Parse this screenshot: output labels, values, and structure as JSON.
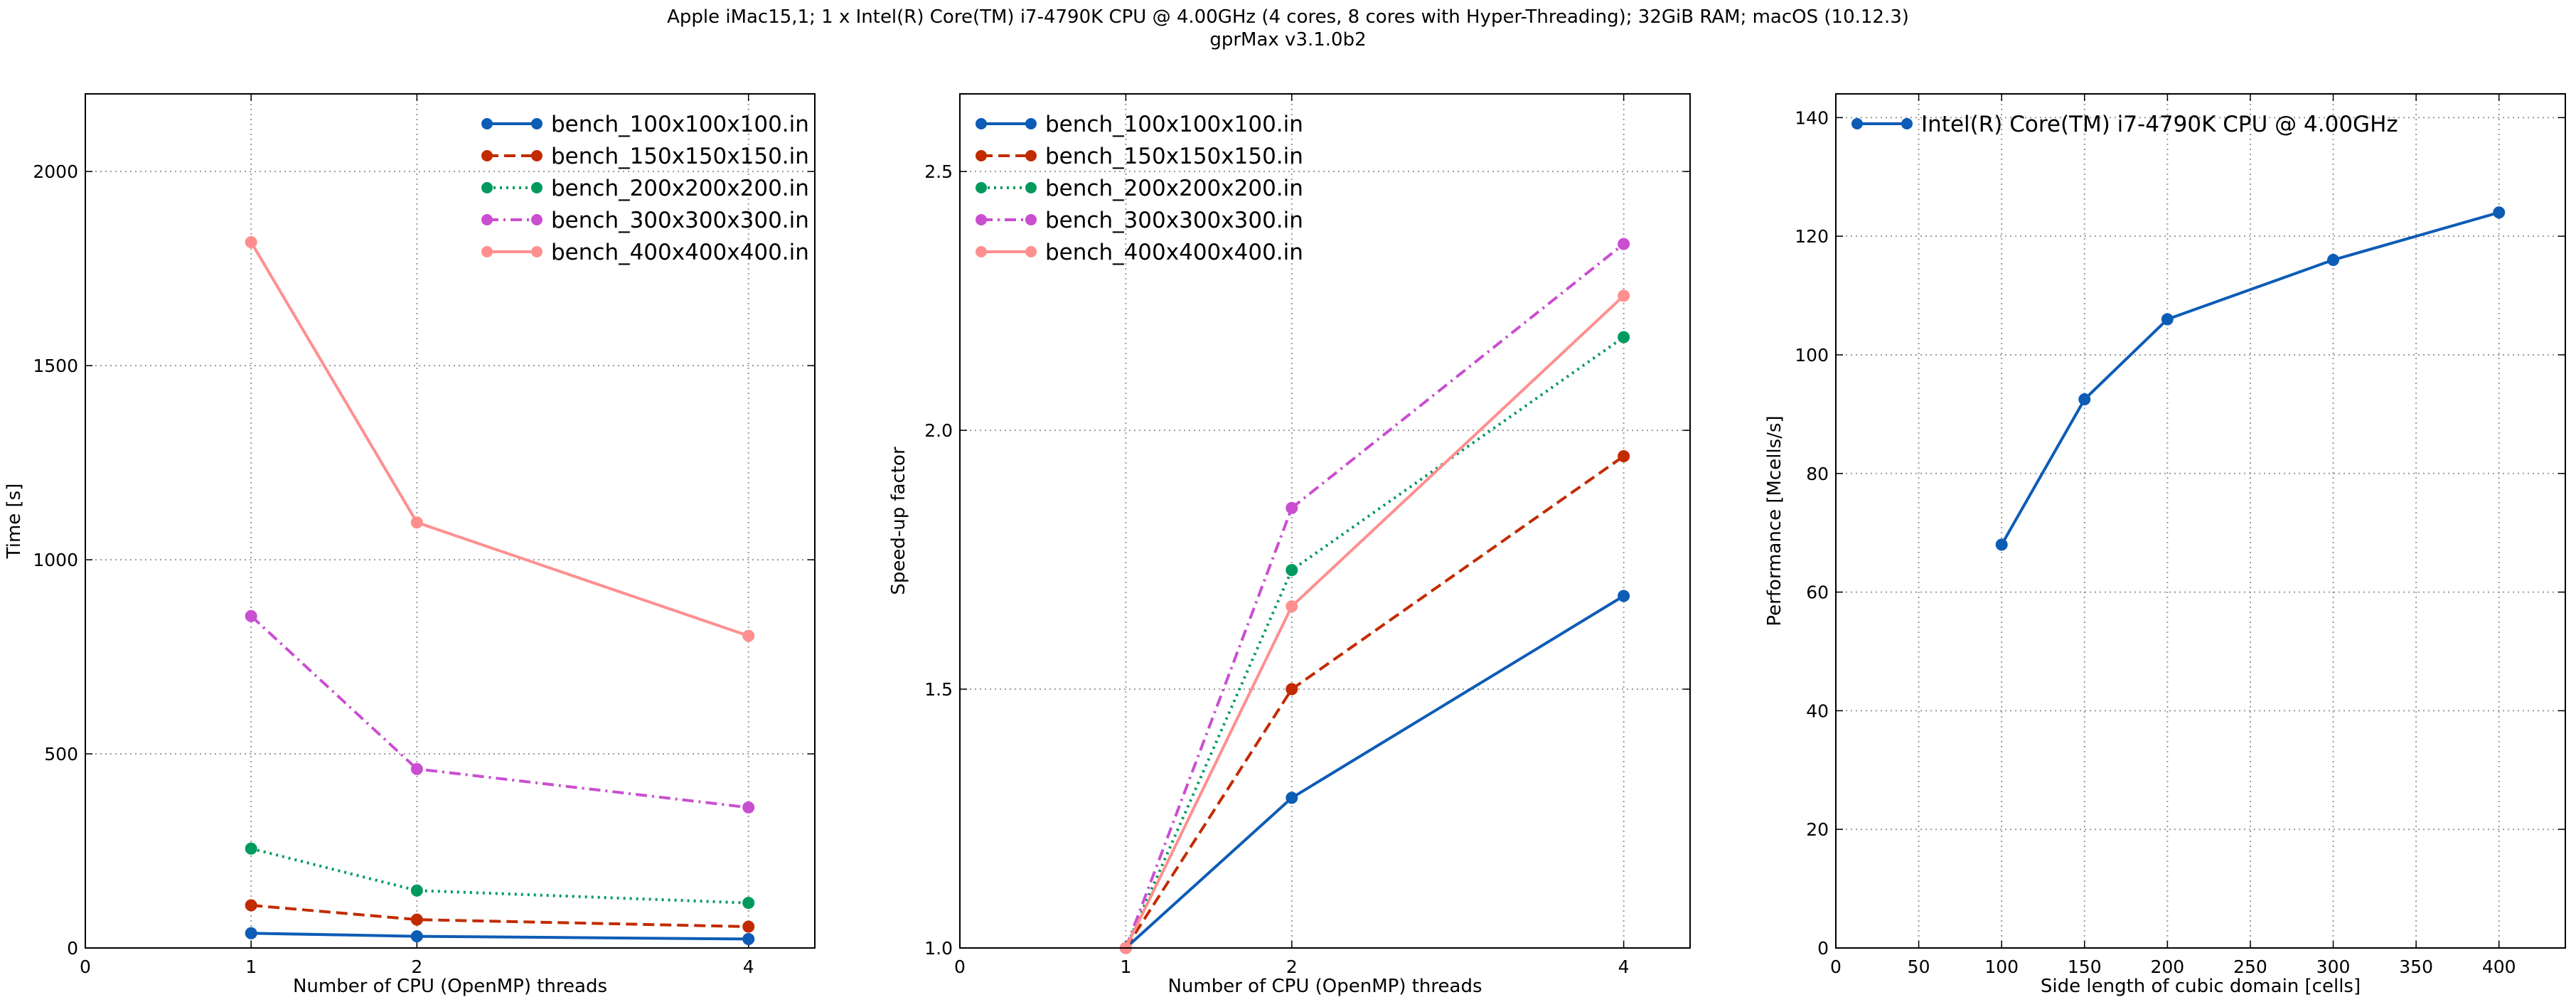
{
  "figure": {
    "title_line1": "Apple iMac15,1; 1 x Intel(R) Core(TM) i7-4790K CPU @ 4.00GHz (4 cores, 8 cores with Hyper-Threading); 32GiB RAM; macOS (10.12.3)",
    "title_line2": "gprMax v3.1.0b2"
  },
  "chart_data": [
    {
      "type": "line",
      "xlabel": "Number of CPU (OpenMP) threads",
      "ylabel": "Time [s]",
      "xlim": [
        0,
        4.4
      ],
      "ylim": [
        0,
        2200
      ],
      "xticks": [
        0,
        1,
        2,
        4
      ],
      "yticks": [
        0,
        500,
        1000,
        1500,
        2000
      ],
      "x_gridlines": [
        1,
        2,
        4
      ],
      "grid": true,
      "legend_position": "top-right",
      "x": [
        1,
        2,
        4
      ],
      "series": [
        {
          "name": "bench_100x100x100.in",
          "values": [
            38,
            30,
            23
          ],
          "color": "#0d5cb6",
          "dash": "solid"
        },
        {
          "name": "bench_150x150x150.in",
          "values": [
            110,
            73,
            55
          ],
          "color": "#c22b00",
          "dash": "dashed"
        },
        {
          "name": "bench_200x200x200.in",
          "values": [
            256,
            148,
            116
          ],
          "color": "#009a5e",
          "dash": "dotted"
        },
        {
          "name": "bench_300x300x300.in",
          "values": [
            855,
            461,
            362
          ],
          "color": "#c94fd0",
          "dash": "dashdot"
        },
        {
          "name": "bench_400x400x400.in",
          "values": [
            1818,
            1096,
            804
          ],
          "color": "#ff8f8f",
          "dash": "solid"
        }
      ]
    },
    {
      "type": "line",
      "xlabel": "Number of CPU (OpenMP) threads",
      "ylabel": "Speed-up factor",
      "xlim": [
        0,
        4.4
      ],
      "ylim": [
        1.0,
        2.65
      ],
      "xticks": [
        0,
        1,
        2,
        4
      ],
      "yticks": [
        1.0,
        1.5,
        2.0,
        2.5
      ],
      "x_gridlines": [
        1,
        2,
        4
      ],
      "grid": true,
      "legend_position": "top-left",
      "x": [
        1,
        2,
        4
      ],
      "series": [
        {
          "name": "bench_100x100x100.in",
          "values": [
            1.0,
            1.29,
            1.68
          ],
          "color": "#0d5cb6",
          "dash": "solid"
        },
        {
          "name": "bench_150x150x150.in",
          "values": [
            1.0,
            1.5,
            1.95
          ],
          "color": "#c22b00",
          "dash": "dashed"
        },
        {
          "name": "bench_200x200x200.in",
          "values": [
            1.0,
            1.73,
            2.18
          ],
          "color": "#009a5e",
          "dash": "dotted"
        },
        {
          "name": "bench_300x300x300.in",
          "values": [
            1.0,
            1.85,
            2.36
          ],
          "color": "#c94fd0",
          "dash": "dashdot"
        },
        {
          "name": "bench_400x400x400.in",
          "values": [
            1.0,
            1.66,
            2.26
          ],
          "color": "#ff8f8f",
          "dash": "solid"
        }
      ]
    },
    {
      "type": "line",
      "xlabel": "Side length of cubic domain [cells]",
      "ylabel": "Performance [Mcells/s]",
      "xlim": [
        0,
        440
      ],
      "ylim": [
        0,
        144
      ],
      "xticks": [
        0,
        50,
        100,
        150,
        200,
        250,
        300,
        350,
        400
      ],
      "yticks": [
        0,
        20,
        40,
        60,
        80,
        100,
        120,
        140
      ],
      "x_gridlines": [
        50,
        100,
        150,
        200,
        250,
        300,
        350,
        400
      ],
      "grid": true,
      "legend_position": "top-left",
      "x": [
        100,
        150,
        200,
        300,
        400
      ],
      "series": [
        {
          "name": "Intel(R) Core(TM) i7-4790K CPU @ 4.00GHz",
          "values": [
            68,
            92.5,
            106,
            116,
            124
          ],
          "color": "#0d5cb6",
          "dash": "solid"
        }
      ]
    }
  ]
}
